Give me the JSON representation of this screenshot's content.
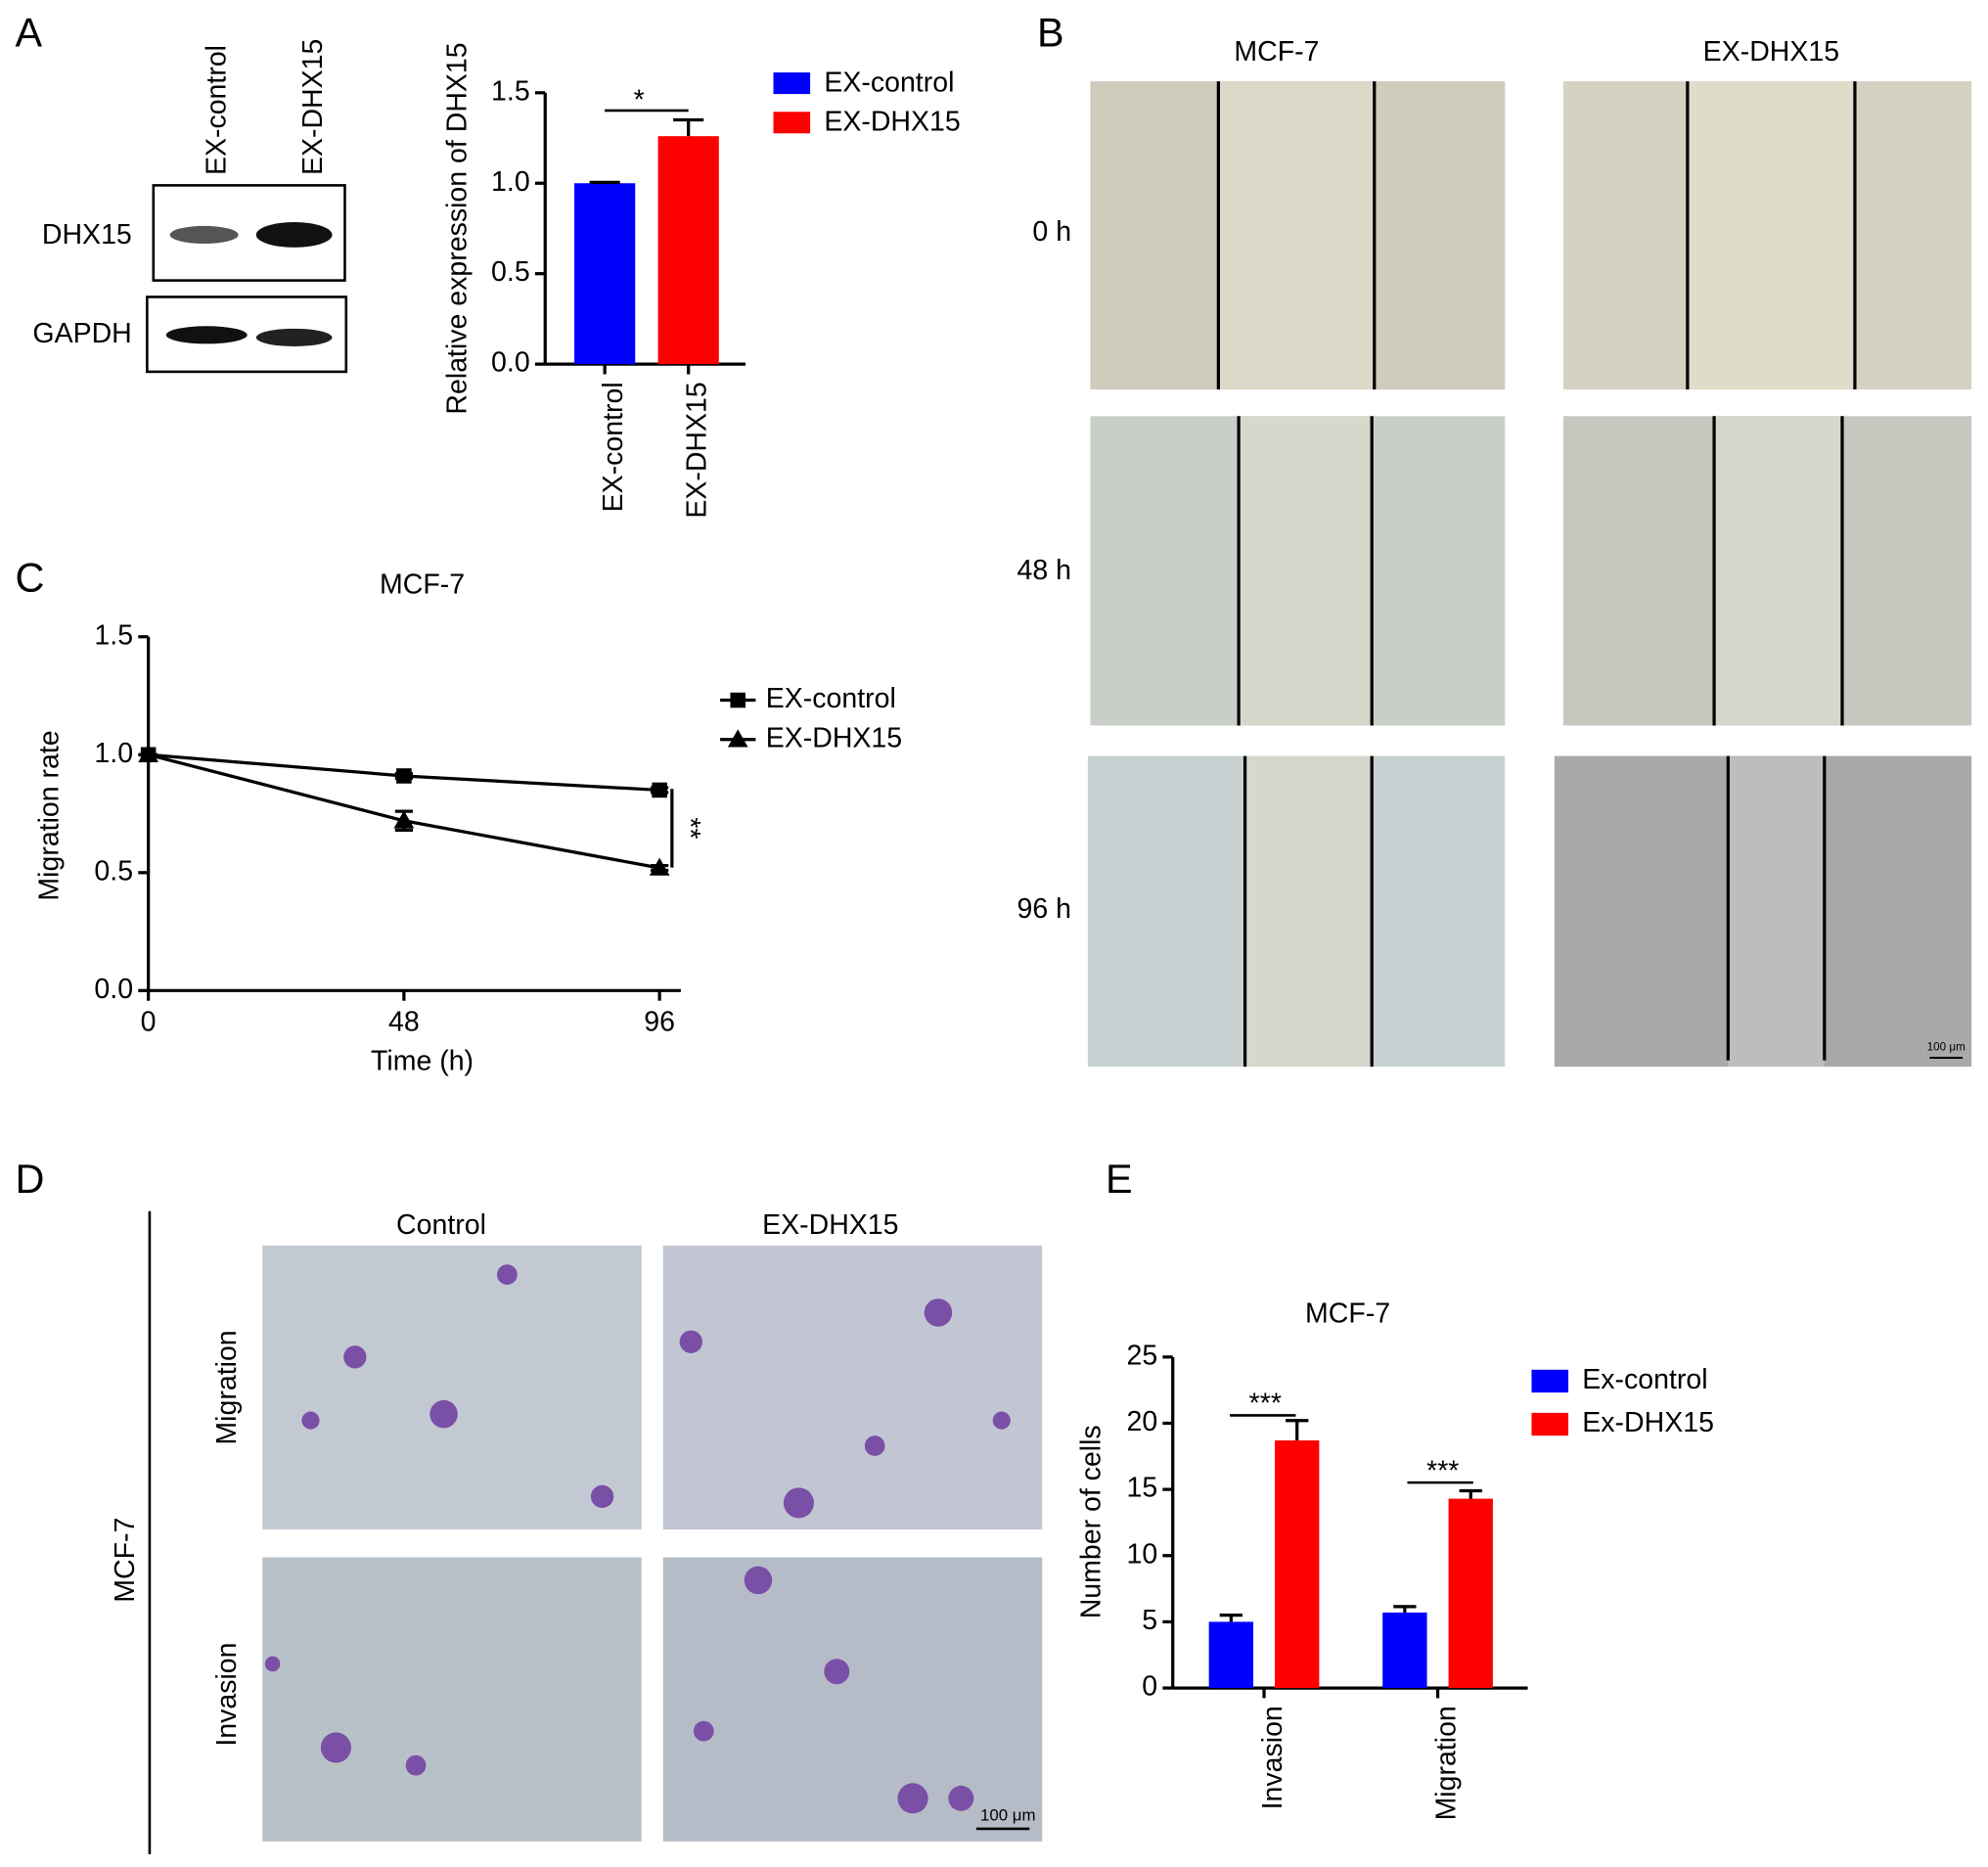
{
  "figure": {
    "panels": [
      "A",
      "B",
      "C",
      "D",
      "E"
    ],
    "blot": {
      "lanes": [
        "EX-control",
        "EX-DHX15"
      ],
      "bands": [
        "DHX15",
        "GAPDH"
      ]
    },
    "wound": {
      "columns": [
        "MCF-7",
        "EX-DHX15"
      ],
      "rows": [
        "0 h",
        "48 h",
        "96 h"
      ],
      "scale_bar": "100 μm"
    },
    "transwell": {
      "columns": [
        "Control",
        "EX-DHX15"
      ],
      "rows": [
        "Migration",
        "Invasion"
      ],
      "cell_line": "MCF-7",
      "scale_bar": "100 μm"
    }
  },
  "chart_data": [
    {
      "type": "bar",
      "ylabel": "Relative expression of DHX15",
      "categories": [
        "EX-control",
        "EX-DHX15"
      ],
      "values": [
        1.0,
        1.26
      ],
      "errors": [
        0.005,
        0.09
      ],
      "colors": [
        "#0000ff",
        "#ff0000"
      ],
      "ylim": [
        0,
        1.5
      ],
      "yticks": [
        {
          "value": 0,
          "label": "0.0"
        },
        0.5,
        {
          "value": 1,
          "label": "1.0"
        },
        1.5
      ],
      "legend": "upper right",
      "annotations": [
        "*"
      ]
    },
    {
      "type": "line",
      "title": "MCF-7",
      "xlabel": "Time (h)",
      "ylabel": "Migration rate",
      "x": [
        0,
        48,
        96
      ],
      "series": [
        {
          "name": "EX-control",
          "color": "#000000",
          "marker": "square",
          "values": [
            1.0,
            0.91,
            0.85
          ],
          "errors": [
            0,
            0.01,
            0.01
          ]
        },
        {
          "name": "EX-DHX15",
          "color": "#000000",
          "marker": "triangle",
          "values": [
            1.0,
            0.72,
            0.52
          ],
          "errors": [
            0,
            0.04,
            0.01
          ]
        }
      ],
      "xlim": [
        0,
        100
      ],
      "xticks": [
        0,
        48,
        96
      ],
      "ylim": [
        0,
        1.5
      ],
      "yticks": [
        {
          "value": 0,
          "label": "0.0"
        },
        0.5,
        {
          "value": 1,
          "label": "1.0"
        },
        1.5
      ],
      "legend": "upper right",
      "annotations": [
        "**"
      ]
    },
    {
      "type": "grouped_bar",
      "title": "MCF-7",
      "ylabel": "Number of cells",
      "categories": [
        "Invasion",
        "Migration"
      ],
      "series": [
        {
          "name": "Ex-control",
          "color": "#0000ff",
          "values": [
            5.0,
            5.7
          ],
          "errors": [
            0.5,
            0.45
          ]
        },
        {
          "name": "Ex-DHX15",
          "color": "#ff0000",
          "values": [
            18.7,
            14.3
          ],
          "errors": [
            1.5,
            0.6
          ]
        }
      ],
      "ylim": [
        0,
        25
      ],
      "yticks": [
        0,
        5,
        10,
        15,
        20,
        25
      ],
      "legend": "upper right",
      "annotations": [
        "***",
        "***"
      ]
    }
  ]
}
